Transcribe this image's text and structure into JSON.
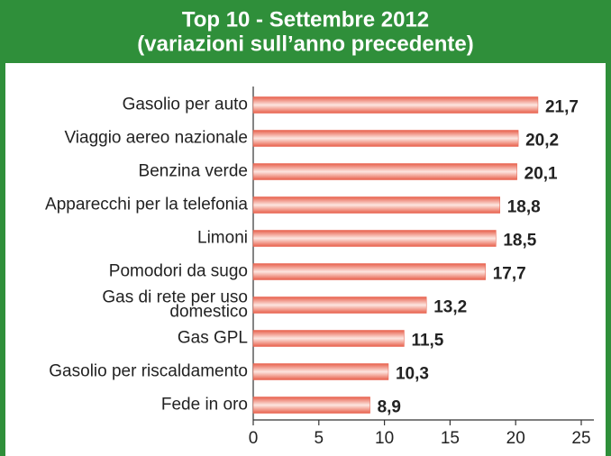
{
  "chart_data": {
    "type": "barh",
    "title": "Top 10 - Settembre 2012",
    "subtitle": "(variazioni sull’anno precedente)",
    "categories": [
      "Gasolio per auto",
      "Viaggio aereo nazionale",
      "Benzina verde",
      "Apparecchi per la telefonia",
      "Limoni",
      "Pomodori da sugo",
      "Gas di rete per uso domestico",
      "Gas GPL",
      "Gasolio per riscaldamento",
      "Fede in oro"
    ],
    "values": [
      21.7,
      20.2,
      20.1,
      18.8,
      18.5,
      17.7,
      13.2,
      11.5,
      10.3,
      8.9
    ],
    "value_labels": [
      "21,7",
      "20,2",
      "20,1",
      "18,8",
      "18,5",
      "17,7",
      "13,2",
      "11,5",
      "10,3",
      "8,9"
    ],
    "color": "#e8604c",
    "xlim": [
      0,
      25
    ],
    "xticks": [
      0,
      5,
      10,
      15,
      20,
      25
    ],
    "grid": false
  }
}
